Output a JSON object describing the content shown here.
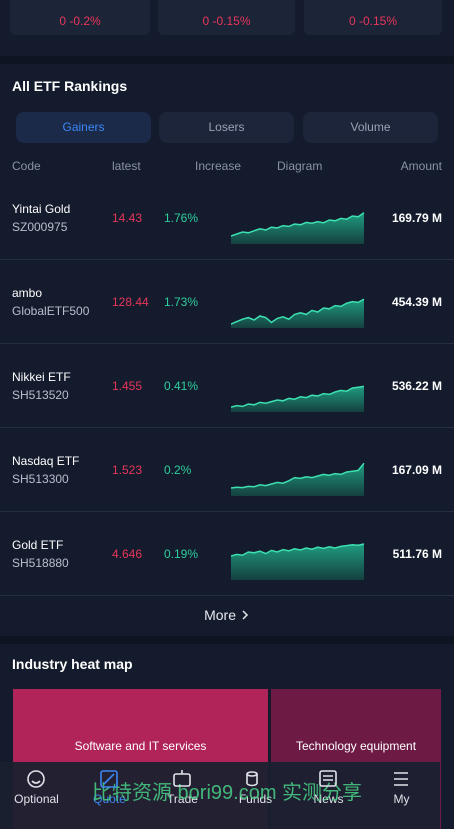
{
  "top_cards": [
    "0 -0.2%",
    "0 -0.15%",
    "0 -0.15%"
  ],
  "rankings": {
    "title": "All ETF Rankings",
    "tabs": [
      "Gainers",
      "Losers",
      "Volume"
    ],
    "columns": [
      "Code",
      "latest",
      "Increase",
      "Diagram",
      "Amount"
    ],
    "rows": [
      {
        "name": "Yintai Gold",
        "code": "SZ000975",
        "latest": "14.43",
        "increase": "1.76%",
        "amount": "169.79 M",
        "trend": [
          2,
          2.5,
          3,
          2.8,
          3.3,
          3.8,
          3.5,
          4.2,
          4.0,
          4.6,
          4.4,
          5.0,
          4.8,
          5.4,
          5.2,
          5.6,
          5.3,
          6.0,
          5.8,
          6.4,
          6.2,
          7.0,
          6.8,
          7.8
        ]
      },
      {
        "name": "ambo",
        "code": "GlobalETF500",
        "latest": "128.44",
        "increase": "1.73%",
        "amount": "454.39 M",
        "trend": [
          1,
          1.6,
          2.2,
          2.6,
          2.0,
          3.0,
          2.6,
          1.4,
          2.4,
          2.8,
          2.2,
          3.4,
          3.8,
          3.4,
          4.4,
          4.0,
          5.0,
          4.8,
          5.6,
          5.4,
          6.2,
          6.6,
          6.4,
          7.2
        ]
      },
      {
        "name": "Nikkei ETF",
        "code": "SH513520",
        "latest": "1.455",
        "increase": "0.41%",
        "amount": "536.22 M",
        "trend": [
          1.2,
          1.6,
          1.4,
          2.0,
          1.8,
          2.4,
          2.2,
          2.6,
          3.0,
          2.8,
          3.4,
          3.2,
          3.8,
          3.6,
          4.2,
          4.0,
          4.6,
          4.4,
          5.0,
          5.4,
          5.2,
          6.0,
          6.2,
          6.4
        ]
      },
      {
        "name": "Nasdaq ETF",
        "code": "SH513300",
        "latest": "1.523",
        "increase": "0.2%",
        "amount": "167.09 M",
        "trend": [
          2,
          2.2,
          2.1,
          2.4,
          2.3,
          2.8,
          2.6,
          3.0,
          3.4,
          3.2,
          3.8,
          4.6,
          4.4,
          4.8,
          4.6,
          5.0,
          5.4,
          5.2,
          5.6,
          5.4,
          6.0,
          6.2,
          6.4,
          8.2
        ]
      },
      {
        "name": "Gold ETF",
        "code": "SH518880",
        "latest": "4.646",
        "increase": "0.19%",
        "amount": "511.76 M",
        "trend": [
          6,
          6.4,
          6.2,
          7.0,
          6.8,
          7.2,
          6.6,
          7.4,
          7.0,
          7.6,
          7.3,
          7.8,
          7.5,
          8.0,
          7.7,
          8.2,
          7.9,
          8.3,
          8.0,
          8.4,
          8.6,
          8.8,
          8.7,
          9.0
        ]
      }
    ],
    "more": "More"
  },
  "heatmap": {
    "title": "Industry heat map",
    "tiles": [
      "Software and IT services",
      "Technology equipment"
    ]
  },
  "nav": [
    "Optional",
    "Quote",
    "Trade",
    "Funds",
    "News",
    "My"
  ],
  "watermark": "比特资源 bori99.com 实测分享"
}
